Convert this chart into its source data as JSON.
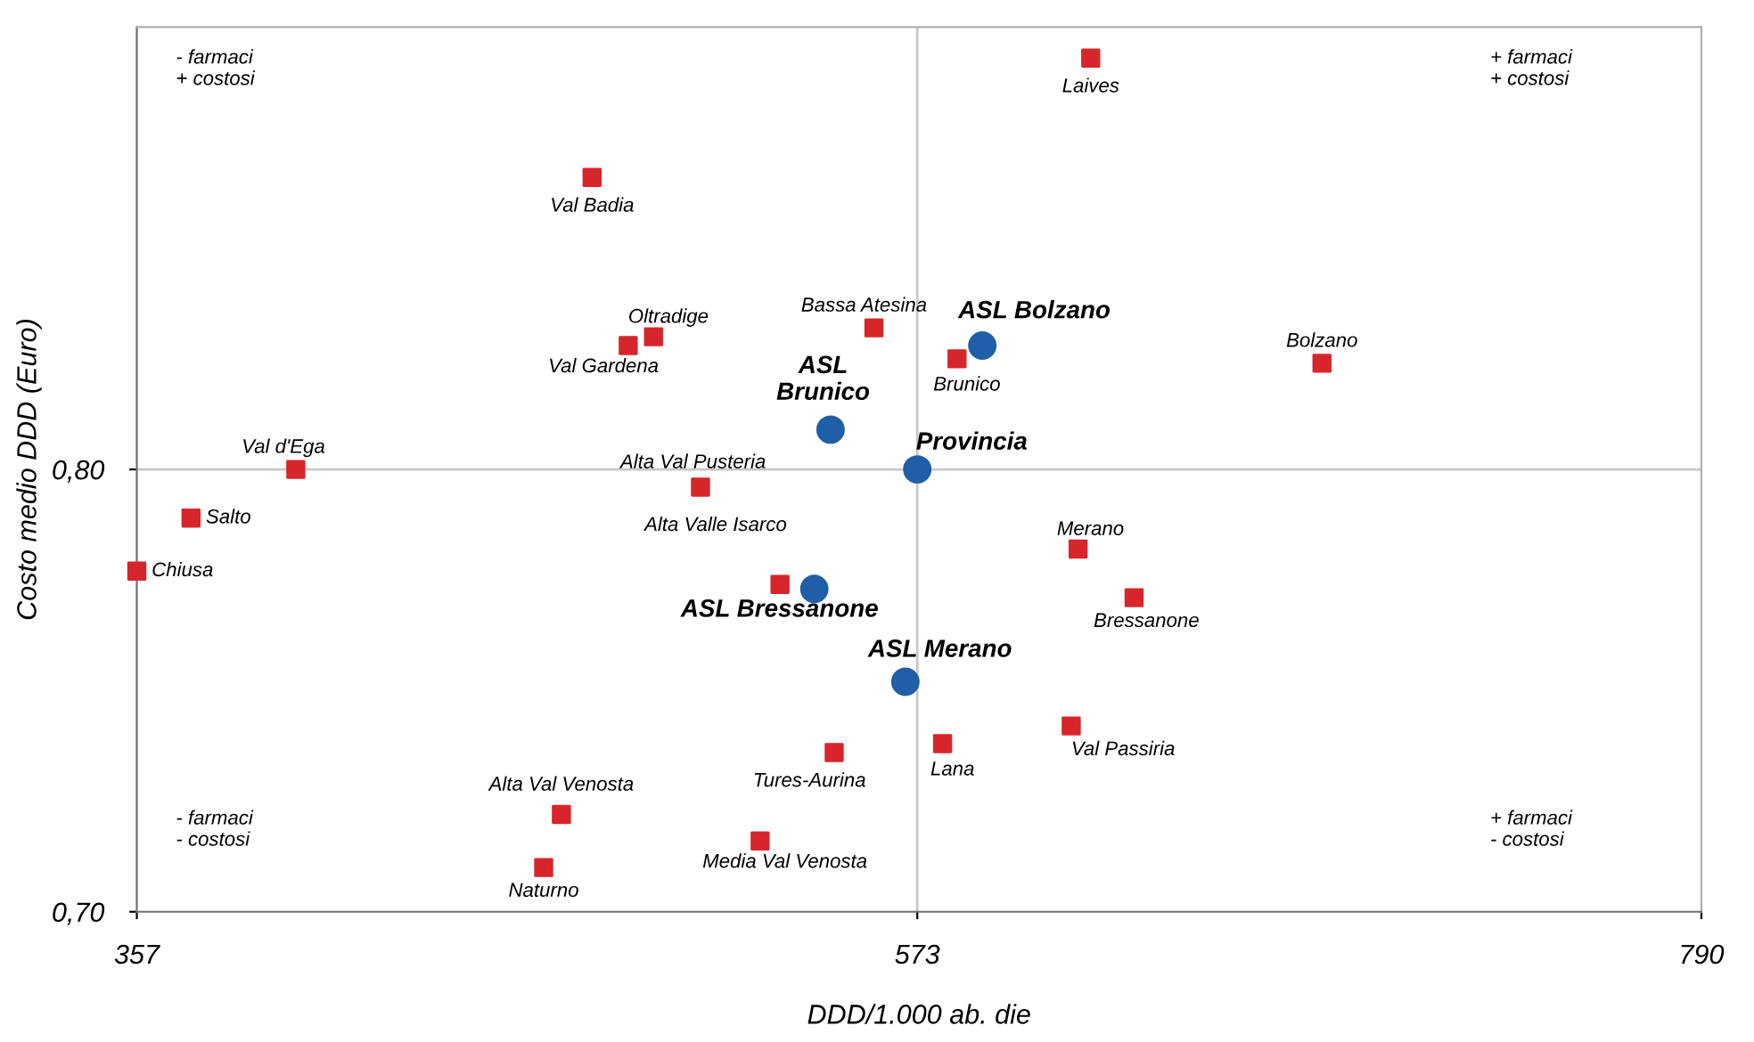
{
  "chart_data": {
    "type": "scatter",
    "xlabel": "DDD/1.000 ab. die",
    "ylabel": "Costo medio DDD (Euro)",
    "xlim": [
      357,
      790
    ],
    "xticks": [
      357,
      573,
      790
    ],
    "ylim": [
      0.7,
      0.9
    ],
    "yticks": [
      {
        "value": 0.7,
        "label": "0,70"
      },
      {
        "value": 0.8,
        "label": "0,80"
      }
    ],
    "grid": false,
    "ref_lines": [
      {
        "axis": "x",
        "value": 573,
        "color": "#c8c8c8"
      },
      {
        "axis": "y",
        "value": 0.8,
        "color": "#c8c8c8"
      }
    ],
    "series": [
      {
        "color": "#d7262b",
        "marker": "square",
        "x": [
          621,
          483,
          500,
          493,
          561,
          584,
          685,
          401,
          513,
          372,
          357,
          617.5,
          535,
          633,
          615.6,
          580,
          550,
          474.5,
          529.5,
          469.6
        ],
        "values": [
          0.893,
          0.866,
          0.83,
          0.828,
          0.832,
          0.825,
          0.824,
          0.8,
          0.796,
          0.789,
          0.777,
          0.782,
          0.774,
          0.771,
          0.742,
          0.738,
          0.736,
          0.722,
          0.716,
          0.71
        ]
      },
      {
        "color": "#1f5fa8",
        "marker": "circle",
        "x": [
          591,
          549,
          573,
          544.5,
          569.7
        ],
        "values": [
          0.828,
          0.809,
          0.8,
          0.773,
          0.752
        ]
      }
    ],
    "annotations": [
      "- farmaci\n+ costosi",
      "+ farmaci\n+ costosi",
      "- farmaci\n- costosi",
      "+ farmaci\n- costosi",
      {
        "text": "Laives",
        "x": 621,
        "y": 0.893
      },
      {
        "text": "Val Badia",
        "x": 483,
        "y": 0.866
      },
      {
        "text": "Oltradige",
        "x": 500,
        "y": 0.83
      },
      {
        "text": "Val Gardena",
        "x": 493,
        "y": 0.828
      },
      {
        "text": "Bassa Atesina",
        "x": 561,
        "y": 0.832
      },
      {
        "text": "Brunico",
        "x": 584,
        "y": 0.825
      },
      {
        "text": "Bolzano",
        "x": 685,
        "y": 0.824
      },
      {
        "text": "Val d'Ega",
        "x": 401,
        "y": 0.8
      },
      {
        "text": "Alta Val Pusteria",
        "x": 513,
        "y": 0.796
      },
      {
        "text": "Salto",
        "x": 372,
        "y": 0.789
      },
      {
        "text": "Chiusa",
        "x": 357,
        "y": 0.777
      },
      {
        "text": "Merano",
        "x": 617.5,
        "y": 0.782
      },
      {
        "text": "Alta Valle Isarco",
        "x": 535,
        "y": 0.774
      },
      {
        "text": "Bressanone",
        "x": 633,
        "y": 0.771
      },
      {
        "text": "Val Passiria",
        "x": 615.6,
        "y": 0.742
      },
      {
        "text": "Lana",
        "x": 580,
        "y": 0.738
      },
      {
        "text": "Tures-Aurina",
        "x": 550,
        "y": 0.736
      },
      {
        "text": "Alta Val Venosta",
        "x": 474.5,
        "y": 0.722
      },
      {
        "text": "Media Val Venosta",
        "x": 529.5,
        "y": 0.716
      },
      {
        "text": "Naturno",
        "x": 469.6,
        "y": 0.71
      },
      {
        "text": "ASL Bolzano",
        "x": 591,
        "y": 0.828
      },
      {
        "text": "ASL\nBrunico",
        "x": 549,
        "y": 0.809
      },
      {
        "text": "Provincia",
        "x": 573,
        "y": 0.8
      },
      {
        "text": "ASL Bressanone",
        "x": 544.5,
        "y": 0.773
      },
      {
        "text": "ASL Merano",
        "x": 569.7,
        "y": 0.752
      }
    ]
  }
}
